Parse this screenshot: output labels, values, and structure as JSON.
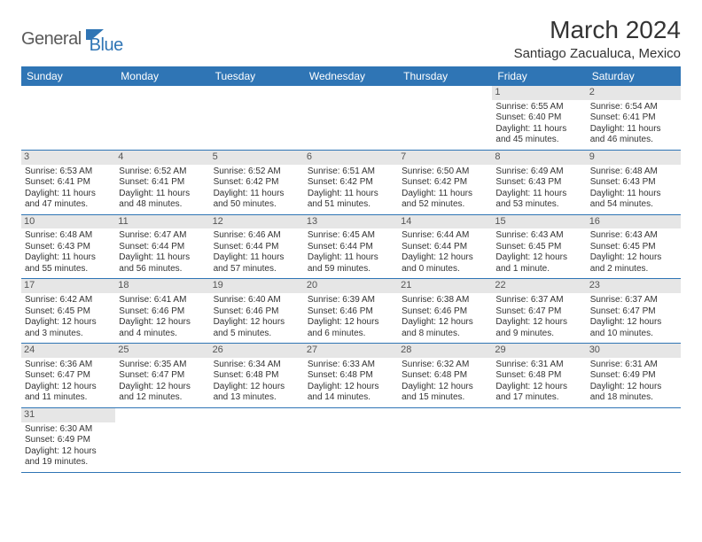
{
  "brand": {
    "part1": "General",
    "part2": "Blue"
  },
  "title": "March 2024",
  "location": "Santiago Zacualuca, Mexico",
  "colors": {
    "header_bg": "#2f75b5",
    "header_text": "#ffffff",
    "daynum_bg": "#e6e6e6",
    "cell_border": "#2f75b5",
    "body_text": "#333333"
  },
  "weekdays": [
    "Sunday",
    "Monday",
    "Tuesday",
    "Wednesday",
    "Thursday",
    "Friday",
    "Saturday"
  ],
  "weeks": [
    [
      null,
      null,
      null,
      null,
      null,
      {
        "n": "1",
        "sr": "Sunrise: 6:55 AM",
        "ss": "Sunset: 6:40 PM",
        "dl": "Daylight: 11 hours and 45 minutes."
      },
      {
        "n": "2",
        "sr": "Sunrise: 6:54 AM",
        "ss": "Sunset: 6:41 PM",
        "dl": "Daylight: 11 hours and 46 minutes."
      }
    ],
    [
      {
        "n": "3",
        "sr": "Sunrise: 6:53 AM",
        "ss": "Sunset: 6:41 PM",
        "dl": "Daylight: 11 hours and 47 minutes."
      },
      {
        "n": "4",
        "sr": "Sunrise: 6:52 AM",
        "ss": "Sunset: 6:41 PM",
        "dl": "Daylight: 11 hours and 48 minutes."
      },
      {
        "n": "5",
        "sr": "Sunrise: 6:52 AM",
        "ss": "Sunset: 6:42 PM",
        "dl": "Daylight: 11 hours and 50 minutes."
      },
      {
        "n": "6",
        "sr": "Sunrise: 6:51 AM",
        "ss": "Sunset: 6:42 PM",
        "dl": "Daylight: 11 hours and 51 minutes."
      },
      {
        "n": "7",
        "sr": "Sunrise: 6:50 AM",
        "ss": "Sunset: 6:42 PM",
        "dl": "Daylight: 11 hours and 52 minutes."
      },
      {
        "n": "8",
        "sr": "Sunrise: 6:49 AM",
        "ss": "Sunset: 6:43 PM",
        "dl": "Daylight: 11 hours and 53 minutes."
      },
      {
        "n": "9",
        "sr": "Sunrise: 6:48 AM",
        "ss": "Sunset: 6:43 PM",
        "dl": "Daylight: 11 hours and 54 minutes."
      }
    ],
    [
      {
        "n": "10",
        "sr": "Sunrise: 6:48 AM",
        "ss": "Sunset: 6:43 PM",
        "dl": "Daylight: 11 hours and 55 minutes."
      },
      {
        "n": "11",
        "sr": "Sunrise: 6:47 AM",
        "ss": "Sunset: 6:44 PM",
        "dl": "Daylight: 11 hours and 56 minutes."
      },
      {
        "n": "12",
        "sr": "Sunrise: 6:46 AM",
        "ss": "Sunset: 6:44 PM",
        "dl": "Daylight: 11 hours and 57 minutes."
      },
      {
        "n": "13",
        "sr": "Sunrise: 6:45 AM",
        "ss": "Sunset: 6:44 PM",
        "dl": "Daylight: 11 hours and 59 minutes."
      },
      {
        "n": "14",
        "sr": "Sunrise: 6:44 AM",
        "ss": "Sunset: 6:44 PM",
        "dl": "Daylight: 12 hours and 0 minutes."
      },
      {
        "n": "15",
        "sr": "Sunrise: 6:43 AM",
        "ss": "Sunset: 6:45 PM",
        "dl": "Daylight: 12 hours and 1 minute."
      },
      {
        "n": "16",
        "sr": "Sunrise: 6:43 AM",
        "ss": "Sunset: 6:45 PM",
        "dl": "Daylight: 12 hours and 2 minutes."
      }
    ],
    [
      {
        "n": "17",
        "sr": "Sunrise: 6:42 AM",
        "ss": "Sunset: 6:45 PM",
        "dl": "Daylight: 12 hours and 3 minutes."
      },
      {
        "n": "18",
        "sr": "Sunrise: 6:41 AM",
        "ss": "Sunset: 6:46 PM",
        "dl": "Daylight: 12 hours and 4 minutes."
      },
      {
        "n": "19",
        "sr": "Sunrise: 6:40 AM",
        "ss": "Sunset: 6:46 PM",
        "dl": "Daylight: 12 hours and 5 minutes."
      },
      {
        "n": "20",
        "sr": "Sunrise: 6:39 AM",
        "ss": "Sunset: 6:46 PM",
        "dl": "Daylight: 12 hours and 6 minutes."
      },
      {
        "n": "21",
        "sr": "Sunrise: 6:38 AM",
        "ss": "Sunset: 6:46 PM",
        "dl": "Daylight: 12 hours and 8 minutes."
      },
      {
        "n": "22",
        "sr": "Sunrise: 6:37 AM",
        "ss": "Sunset: 6:47 PM",
        "dl": "Daylight: 12 hours and 9 minutes."
      },
      {
        "n": "23",
        "sr": "Sunrise: 6:37 AM",
        "ss": "Sunset: 6:47 PM",
        "dl": "Daylight: 12 hours and 10 minutes."
      }
    ],
    [
      {
        "n": "24",
        "sr": "Sunrise: 6:36 AM",
        "ss": "Sunset: 6:47 PM",
        "dl": "Daylight: 12 hours and 11 minutes."
      },
      {
        "n": "25",
        "sr": "Sunrise: 6:35 AM",
        "ss": "Sunset: 6:47 PM",
        "dl": "Daylight: 12 hours and 12 minutes."
      },
      {
        "n": "26",
        "sr": "Sunrise: 6:34 AM",
        "ss": "Sunset: 6:48 PM",
        "dl": "Daylight: 12 hours and 13 minutes."
      },
      {
        "n": "27",
        "sr": "Sunrise: 6:33 AM",
        "ss": "Sunset: 6:48 PM",
        "dl": "Daylight: 12 hours and 14 minutes."
      },
      {
        "n": "28",
        "sr": "Sunrise: 6:32 AM",
        "ss": "Sunset: 6:48 PM",
        "dl": "Daylight: 12 hours and 15 minutes."
      },
      {
        "n": "29",
        "sr": "Sunrise: 6:31 AM",
        "ss": "Sunset: 6:48 PM",
        "dl": "Daylight: 12 hours and 17 minutes."
      },
      {
        "n": "30",
        "sr": "Sunrise: 6:31 AM",
        "ss": "Sunset: 6:49 PM",
        "dl": "Daylight: 12 hours and 18 minutes."
      }
    ],
    [
      {
        "n": "31",
        "sr": "Sunrise: 6:30 AM",
        "ss": "Sunset: 6:49 PM",
        "dl": "Daylight: 12 hours and 19 minutes."
      },
      null,
      null,
      null,
      null,
      null,
      null
    ]
  ]
}
